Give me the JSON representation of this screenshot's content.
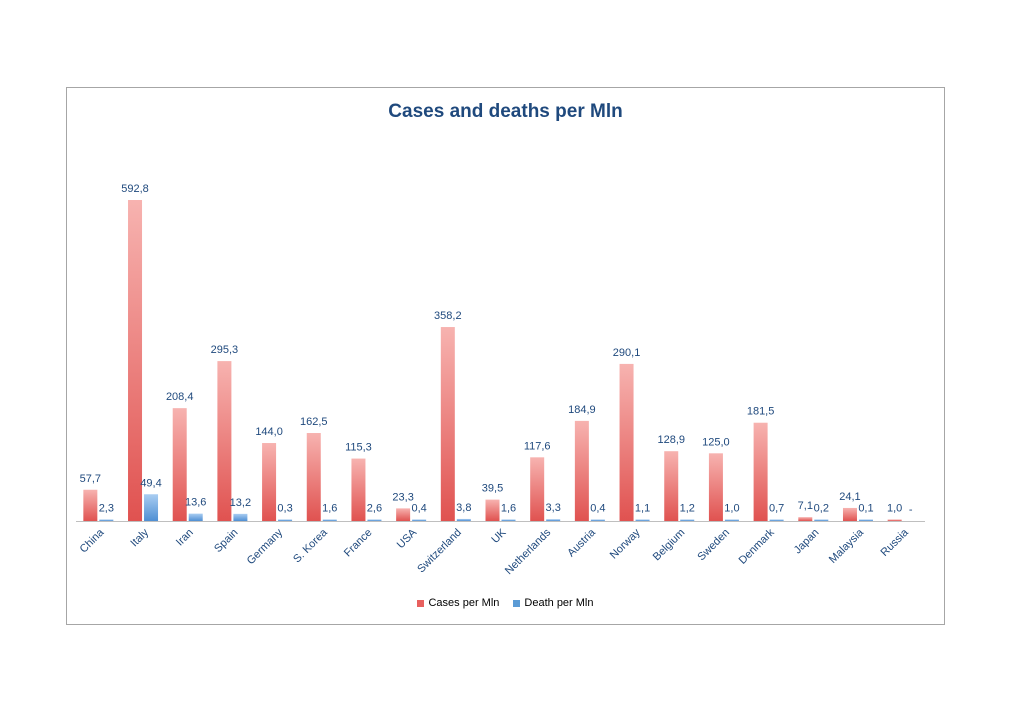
{
  "chart_data": {
    "type": "bar",
    "title": "Cases and deaths per Mln",
    "categories": [
      "China",
      "Italy",
      "Iran",
      "Spain",
      "Germany",
      "S. Korea",
      "France",
      "USA",
      "Switzerland",
      "UK",
      "Netherlands",
      "Austria",
      "Norway",
      "Belgium",
      "Sweden",
      "Denmark",
      "Japan",
      "Malaysia",
      "Russia"
    ],
    "series": [
      {
        "name": "Cases per Mln",
        "values": [
          57.7,
          592.8,
          208.4,
          295.3,
          144.0,
          162.5,
          115.3,
          23.3,
          358.2,
          39.5,
          117.6,
          184.9,
          290.1,
          128.9,
          125.0,
          181.5,
          7.1,
          24.1,
          1.0
        ],
        "labels": [
          "57,7",
          "592,8",
          "208,4",
          "295,3",
          "144,0",
          "162,5",
          "115,3",
          "23,3",
          "358,2",
          "39,5",
          "117,6",
          "184,9",
          "290,1",
          "128,9",
          "125,0",
          "181,5",
          "7,1",
          "24,1",
          "1,0"
        ],
        "color": "#e8605e"
      },
      {
        "name": "Death per Mln",
        "values": [
          2.3,
          49.4,
          13.6,
          13.2,
          0.3,
          1.6,
          2.6,
          0.4,
          3.8,
          1.6,
          3.3,
          0.4,
          1.1,
          1.2,
          1.0,
          0.7,
          0.2,
          0.1,
          0
        ],
        "labels": [
          "2,3",
          "49,4",
          "13,6",
          "13,2",
          "0,3",
          "1,6",
          "2,6",
          "0,4",
          "3,8",
          "1,6",
          "3,3",
          "0,4",
          "1,1",
          "1,2",
          "1,0",
          "0,7",
          "0,2",
          "0,1",
          "-"
        ],
        "color": "#5b9bd5"
      }
    ],
    "ylim": [
      0,
      592.8
    ],
    "grid": false,
    "legend_position": "bottom"
  }
}
